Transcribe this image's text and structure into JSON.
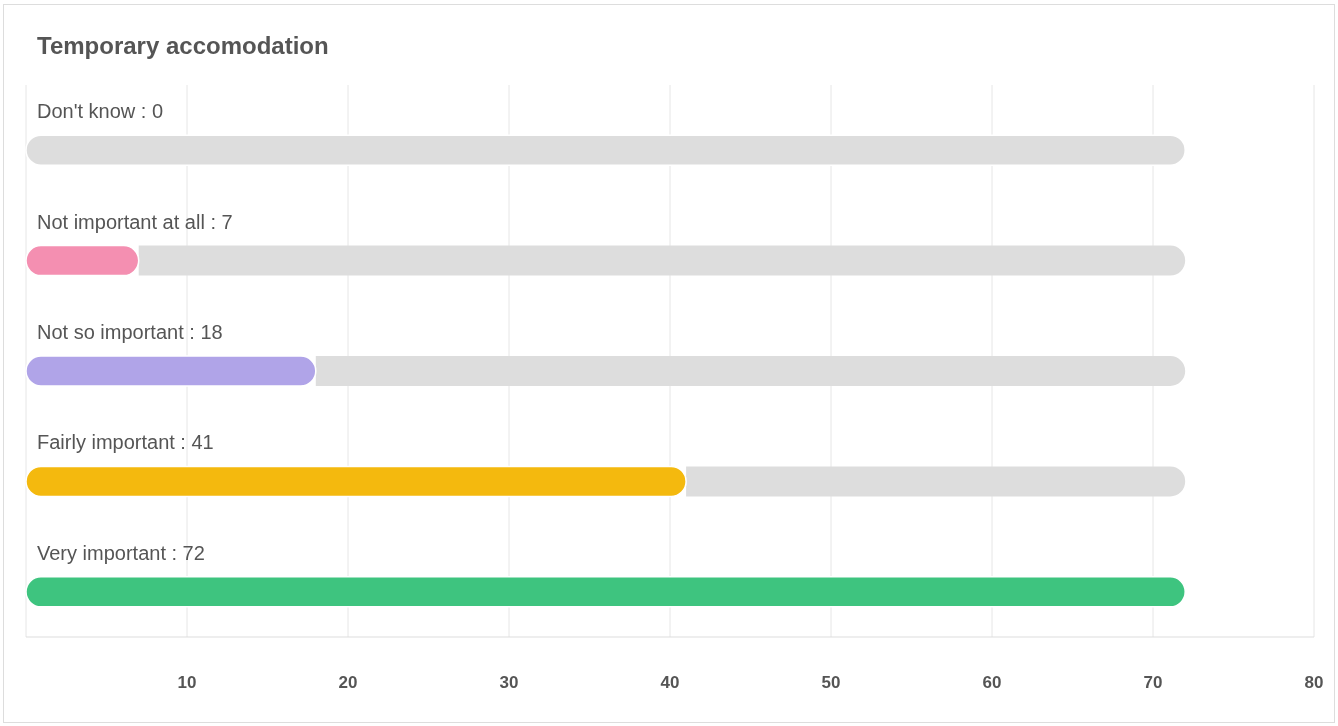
{
  "chart_data": {
    "type": "bar",
    "orientation": "horizontal",
    "stacked": true,
    "title": "Temporary accomodation",
    "categories": [
      "Don't know : 0",
      "Not important at all : 7",
      "Not so important : 18",
      "Fairly important : 41",
      "Very important : 72"
    ],
    "series": [
      {
        "colors": [
          "#3ec47f",
          "#f48fb1",
          "#b0a4e8",
          "#f4b90e",
          "#3ec47f"
        ],
        "values": [
          0,
          7,
          18,
          41,
          72
        ]
      },
      {
        "color": "#dddddd",
        "values": [
          72,
          65,
          54,
          31,
          0
        ]
      }
    ],
    "xlim": [
      0,
      80
    ],
    "xticks": [
      10,
      20,
      30,
      40,
      50,
      60,
      70,
      80
    ],
    "grid": "x",
    "tick_labels": "x"
  }
}
